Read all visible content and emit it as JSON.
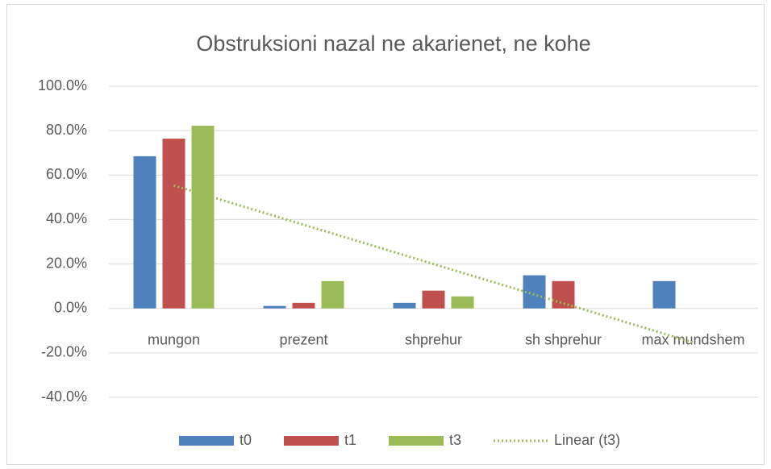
{
  "chart_data": {
    "type": "bar",
    "title": "Obstruksioni nazal ne akarienet, ne kohe",
    "categories": [
      "mungon",
      "prezent",
      "shprehur",
      "sh shprehur",
      "max mundshem"
    ],
    "series": [
      {
        "name": "t0",
        "color": "#4f81bd",
        "values": [
          68.5,
          1.1,
          2.5,
          14.9,
          12.3
        ]
      },
      {
        "name": "t1",
        "color": "#c0504d",
        "values": [
          76.4,
          2.5,
          8.0,
          12.3,
          0
        ]
      },
      {
        "name": "t3",
        "color": "#9bbb59",
        "values": [
          82.2,
          12.3,
          5.4,
          0,
          0
        ]
      }
    ],
    "trendline": {
      "name": "Linear (t3)",
      "type": "linear",
      "series": 2,
      "color": "#9bbb59"
    },
    "ylim": [
      -40,
      100
    ],
    "yticks": [
      {
        "value": -40,
        "label": "-40.0%"
      },
      {
        "value": -20,
        "label": "-20.0%"
      },
      {
        "value": 0,
        "label": "0.0%"
      },
      {
        "value": 20,
        "label": "20.0%"
      },
      {
        "value": 40,
        "label": "40.0%"
      },
      {
        "value": 60,
        "label": "60.0%"
      },
      {
        "value": 80,
        "label": "80.0%"
      },
      {
        "value": 100,
        "label": "100.0%"
      }
    ],
    "grid": true,
    "legend": "bottom"
  }
}
